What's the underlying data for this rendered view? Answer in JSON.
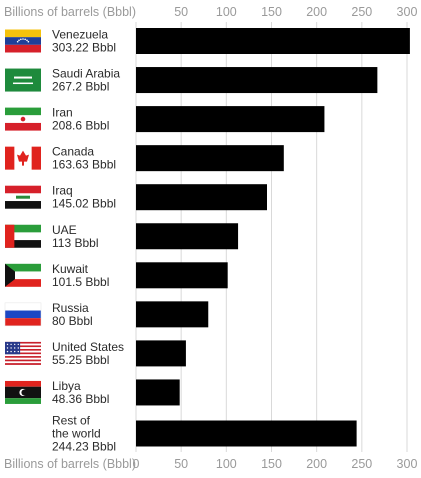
{
  "chart_data": {
    "type": "bar",
    "orientation": "horizontal",
    "axis_title_top": "Billions of barrels (Bbbl)",
    "axis_title_bottom": "Billions of barrels (Bbbl)",
    "xlim": [
      0,
      300
    ],
    "ticks": [
      0,
      50,
      100,
      150,
      200,
      250,
      300
    ],
    "top_ticks": [
      50,
      100,
      150,
      200,
      250,
      300
    ],
    "grid": true,
    "bar_color": "#000000",
    "grid_color": "#d9d9d9",
    "categories": [
      {
        "name": [
          "Venezuela"
        ],
        "value_label": "303.22 Bbbl",
        "value": 303.22,
        "flag": "venezuela-flag"
      },
      {
        "name": [
          "Saudi Arabia"
        ],
        "value_label": "267.2 Bbbl",
        "value": 267.2,
        "flag": "saudi-arabia-flag"
      },
      {
        "name": [
          "Iran"
        ],
        "value_label": "208.6 Bbbl",
        "value": 208.6,
        "flag": "iran-flag"
      },
      {
        "name": [
          "Canada"
        ],
        "value_label": "163.63 Bbbl",
        "value": 163.63,
        "flag": "canada-flag"
      },
      {
        "name": [
          "Iraq"
        ],
        "value_label": "145.02 Bbbl",
        "value": 145.02,
        "flag": "iraq-flag"
      },
      {
        "name": [
          "UAE"
        ],
        "value_label": "113 Bbbl",
        "value": 113,
        "flag": "uae-flag"
      },
      {
        "name": [
          "Kuwait"
        ],
        "value_label": "101.5 Bbbl",
        "value": 101.5,
        "flag": "kuwait-flag"
      },
      {
        "name": [
          "Russia"
        ],
        "value_label": "80 Bbbl",
        "value": 80,
        "flag": "russia-flag"
      },
      {
        "name": [
          "United States"
        ],
        "value_label": "55.25 Bbbl",
        "value": 55.25,
        "flag": "united-states-flag"
      },
      {
        "name": [
          "Libya"
        ],
        "value_label": "48.36 Bbbl",
        "value": 48.36,
        "flag": "libya-flag"
      },
      {
        "name": [
          "Rest of",
          "the world"
        ],
        "value_label": "244.23 Bbbl",
        "value": 244.23,
        "flag": ""
      }
    ]
  }
}
